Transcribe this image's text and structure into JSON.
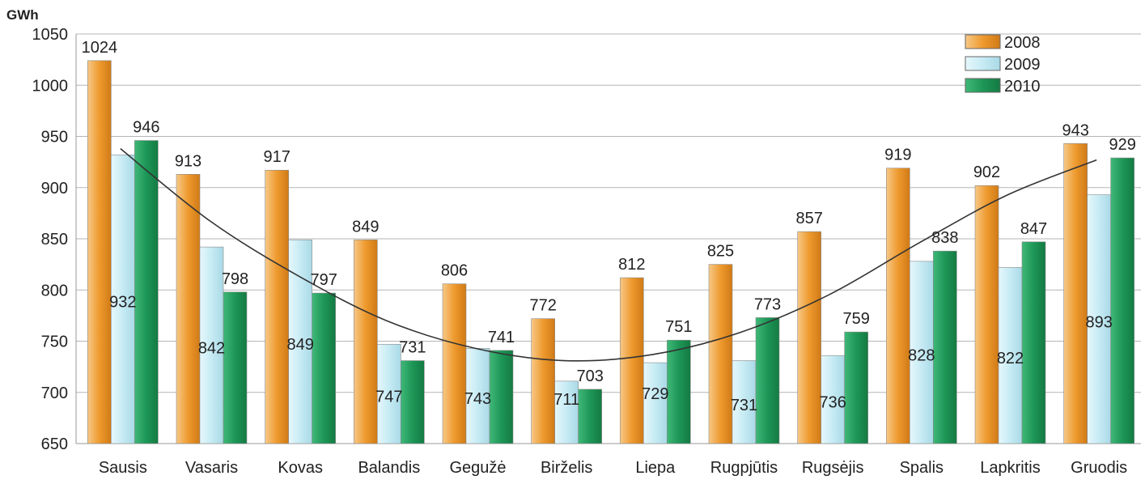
{
  "chart_data": {
    "type": "bar",
    "unit_label": "GWh",
    "categories": [
      "Sausis",
      "Vasaris",
      "Kovas",
      "Balandis",
      "Gegužė",
      "Birželis",
      "Liepa",
      "Rugpjūtis",
      "Rugsėjis",
      "Spalis",
      "Lapkritis",
      "Gruodis"
    ],
    "series": [
      {
        "name": "2008",
        "color": "#f2a640",
        "values": [
          1024,
          913,
          917,
          849,
          806,
          772,
          812,
          825,
          857,
          919,
          902,
          943
        ]
      },
      {
        "name": "2009",
        "color": "#c9ecf5",
        "values": [
          932,
          842,
          849,
          747,
          743,
          711,
          729,
          731,
          736,
          828,
          822,
          893
        ]
      },
      {
        "name": "2010",
        "color": "#1f9a5a",
        "values": [
          946,
          798,
          797,
          731,
          741,
          703,
          751,
          773,
          759,
          838,
          847,
          929
        ]
      }
    ],
    "trendline": {
      "type": "polynomial",
      "points": [
        [
          1,
          938
        ],
        [
          2,
          868
        ],
        [
          3,
          814
        ],
        [
          4,
          770
        ],
        [
          5,
          743
        ],
        [
          6,
          731
        ],
        [
          7,
          737
        ],
        [
          8,
          759
        ],
        [
          9,
          796
        ],
        [
          10,
          846
        ],
        [
          11,
          893
        ],
        [
          12,
          927
        ]
      ]
    },
    "yticks": [
      650,
      700,
      750,
      800,
      850,
      900,
      950,
      1000,
      1050
    ],
    "ylim": [
      650,
      1050
    ],
    "grid": true,
    "legend_position": "top-right"
  }
}
